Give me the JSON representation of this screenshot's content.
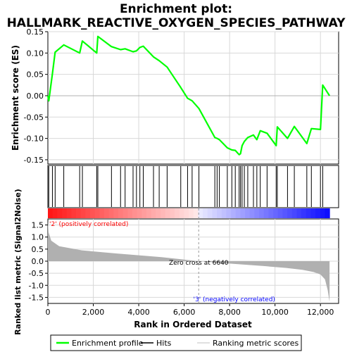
{
  "chart_data": {
    "type": "line",
    "title": "Enrichment plot:\nHALLMARK_REACTIVE_OXYGEN_SPECIES_PATHWAY",
    "xlabel": "Rank in Ordered Dataset",
    "xlim": [
      0,
      12800
    ],
    "x_ticks": [
      0,
      2000,
      4000,
      6000,
      8000,
      10000,
      12000
    ],
    "top_panel": {
      "ylabel": "Enrichment score (ES)",
      "ylim": [
        -0.16,
        0.15
      ],
      "y_ticks": [
        -0.15,
        -0.1,
        -0.05,
        0.0,
        0.05,
        0.1,
        0.15
      ],
      "grid": true
    },
    "bottom_panel": {
      "ylabel": "Ranked list metric (Signal2Noise)",
      "ylim": [
        -1.75,
        1.75
      ],
      "y_ticks": [
        -1.5,
        -1.0,
        -0.5,
        0.0,
        0.5,
        1.0,
        1.5
      ],
      "grid": true
    },
    "dataset_size": 12400,
    "hit_ranks": [
      40,
      200,
      320,
      700,
      1400,
      1520,
      2150,
      2200,
      2800,
      3200,
      3400,
      3750,
      3900,
      4050,
      4200,
      4650,
      4900,
      5250,
      5850,
      6150,
      6350,
      6650,
      7350,
      7450,
      7550,
      7900,
      8100,
      8250,
      8420,
      8480,
      8550,
      8650,
      8800,
      9050,
      9200,
      9350,
      9650,
      10050,
      10100,
      10550,
      10850,
      11400,
      11600,
      12000,
      12100
    ],
    "series": [
      {
        "name": "Enrichment profile",
        "color": "#00ff00",
        "x": [
          0,
          40,
          200,
          320,
          700,
          1400,
          1520,
          2150,
          2200,
          2800,
          3200,
          3400,
          3750,
          3900,
          4050,
          4200,
          4650,
          4900,
          5250,
          5850,
          6150,
          6350,
          6650,
          7350,
          7450,
          7550,
          7900,
          8100,
          8250,
          8420,
          8480,
          8550,
          8650,
          8800,
          9050,
          9200,
          9350,
          9650,
          10050,
          10100,
          10550,
          10850,
          11400,
          11600,
          12000,
          12100,
          12400
        ],
        "y": [
          0.0,
          -0.012,
          0.052,
          0.102,
          0.119,
          0.1,
          0.128,
          0.1,
          0.139,
          0.115,
          0.108,
          0.11,
          0.103,
          0.105,
          0.113,
          0.116,
          0.091,
          0.082,
          0.067,
          0.019,
          -0.006,
          -0.012,
          -0.03,
          -0.098,
          -0.1,
          -0.103,
          -0.122,
          -0.127,
          -0.128,
          -0.138,
          -0.136,
          -0.117,
          -0.107,
          -0.098,
          -0.092,
          -0.103,
          -0.082,
          -0.088,
          -0.117,
          -0.073,
          -0.1,
          -0.072,
          -0.112,
          -0.077,
          -0.079,
          0.025,
          0.0
        ]
      }
    ],
    "legend": {
      "placement": "bottom",
      "items": [
        {
          "label": "Enrichment profile",
          "color": "#00ff00"
        },
        {
          "label": "Hits",
          "color": "#000000"
        },
        {
          "label": "Ranking metric scores",
          "color": "#c0c0c0"
        }
      ]
    },
    "annotations": {
      "positive": "'2' (positively correlated)",
      "negative": "'3' (negatively correlated)",
      "zero_cross": "Zero cross at 6640",
      "zero_cross_rank": 6640
    },
    "metric_profile": {
      "color": "#b0b0b0",
      "points": [
        [
          0,
          1.68
        ],
        [
          30,
          1.2
        ],
        [
          150,
          0.85
        ],
        [
          500,
          0.62
        ],
        [
          1500,
          0.45
        ],
        [
          3000,
          0.32
        ],
        [
          5000,
          0.17
        ],
        [
          6640,
          0.0
        ],
        [
          8000,
          -0.1
        ],
        [
          9500,
          -0.2
        ],
        [
          10500,
          -0.28
        ],
        [
          11200,
          -0.36
        ],
        [
          11700,
          -0.45
        ],
        [
          12000,
          -0.55
        ],
        [
          12200,
          -0.75
        ],
        [
          12320,
          -1.2
        ],
        [
          12400,
          -1.68
        ]
      ]
    }
  }
}
